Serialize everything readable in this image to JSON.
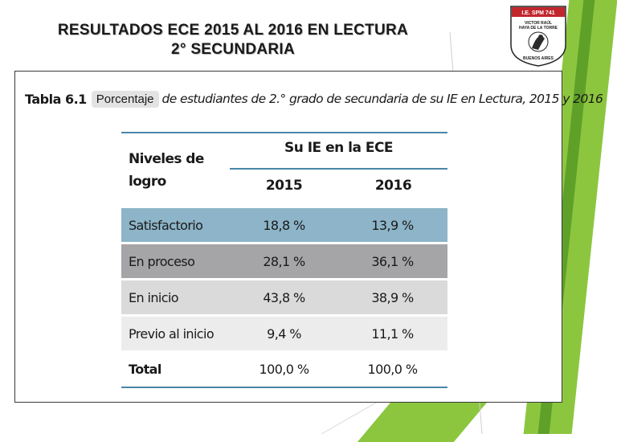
{
  "slide": {
    "title_line1": "RESULTADOS ECE 2015 AL 2016 EN LECTURA",
    "title_line2": "2° SECUNDARIA"
  },
  "logo": {
    "top_text": "I.E. SPM 741",
    "arc_text": "VICTOR RAÚL HAYA DE LA TORRE",
    "bottom_text": "BUENOS AIRES"
  },
  "document": {
    "caption_label": "Tabla 6.1",
    "caption_chip": "Porcentaje",
    "caption_rest": "de estudiantes de 2.° grado de secundaria de su IE en Lectura, 2015 y 2016",
    "table": {
      "col_niveles": "Niveles de logro",
      "group_header": "Su IE en la ECE",
      "years": [
        "2015",
        "2016"
      ],
      "rows": [
        {
          "label": "Satisfactorio",
          "v2015": "18,8 %",
          "v2016": "13,9 %"
        },
        {
          "label": "En proceso",
          "v2015": "28,1 %",
          "v2016": "36,1 %"
        },
        {
          "label": "En inicio",
          "v2015": "43,8 %",
          "v2016": "38,9 %"
        },
        {
          "label": "Previo al inicio",
          "v2015": "9,4 %",
          "v2016": "11,1 %"
        }
      ],
      "total": {
        "label": "Total",
        "v2015": "100,0 %",
        "v2016": "100,0 %"
      }
    }
  },
  "colors": {
    "accent_green": "#8cc63f",
    "header_blue": "#4a86a8",
    "row_satisfactorio": "#8db4c8",
    "row_proceso": "#a5a5a8"
  }
}
